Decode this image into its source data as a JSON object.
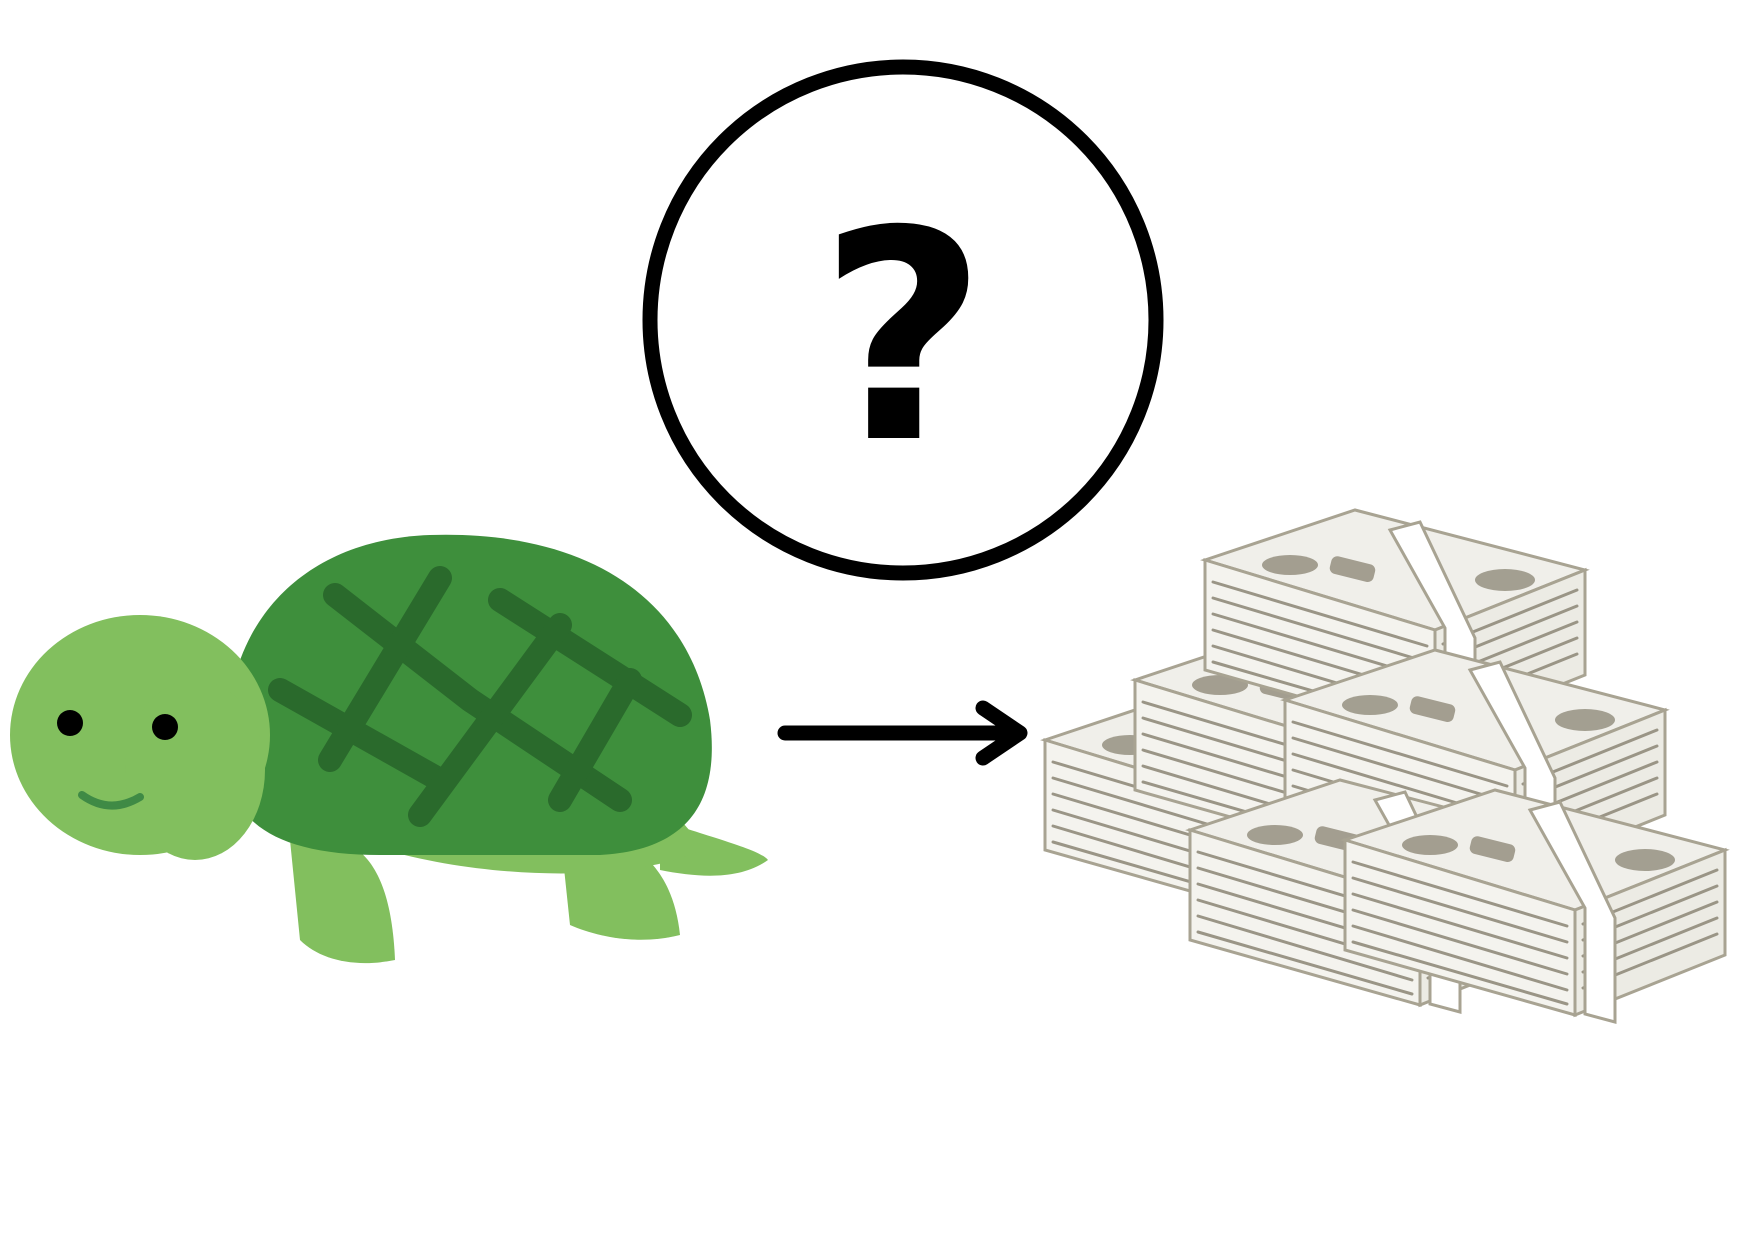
{
  "question_bubble": {
    "symbol": "?"
  },
  "colors": {
    "turtle_body": "#82bf5e",
    "turtle_shell": "#3e8f3c",
    "turtle_shell_pattern": "#2a6a2c",
    "turtle_mouth": "#3f8a45",
    "ink": "#000000",
    "bill_paper": "#f0efea",
    "bill_line": "#9a9586",
    "bill_print": "#8a8473",
    "bill_band": "#ffffff"
  },
  "icons": {
    "subject": "turtle-icon",
    "connector": "arrow-right-icon",
    "result": "money-stacks-icon",
    "unknown": "question-mark-icon"
  }
}
